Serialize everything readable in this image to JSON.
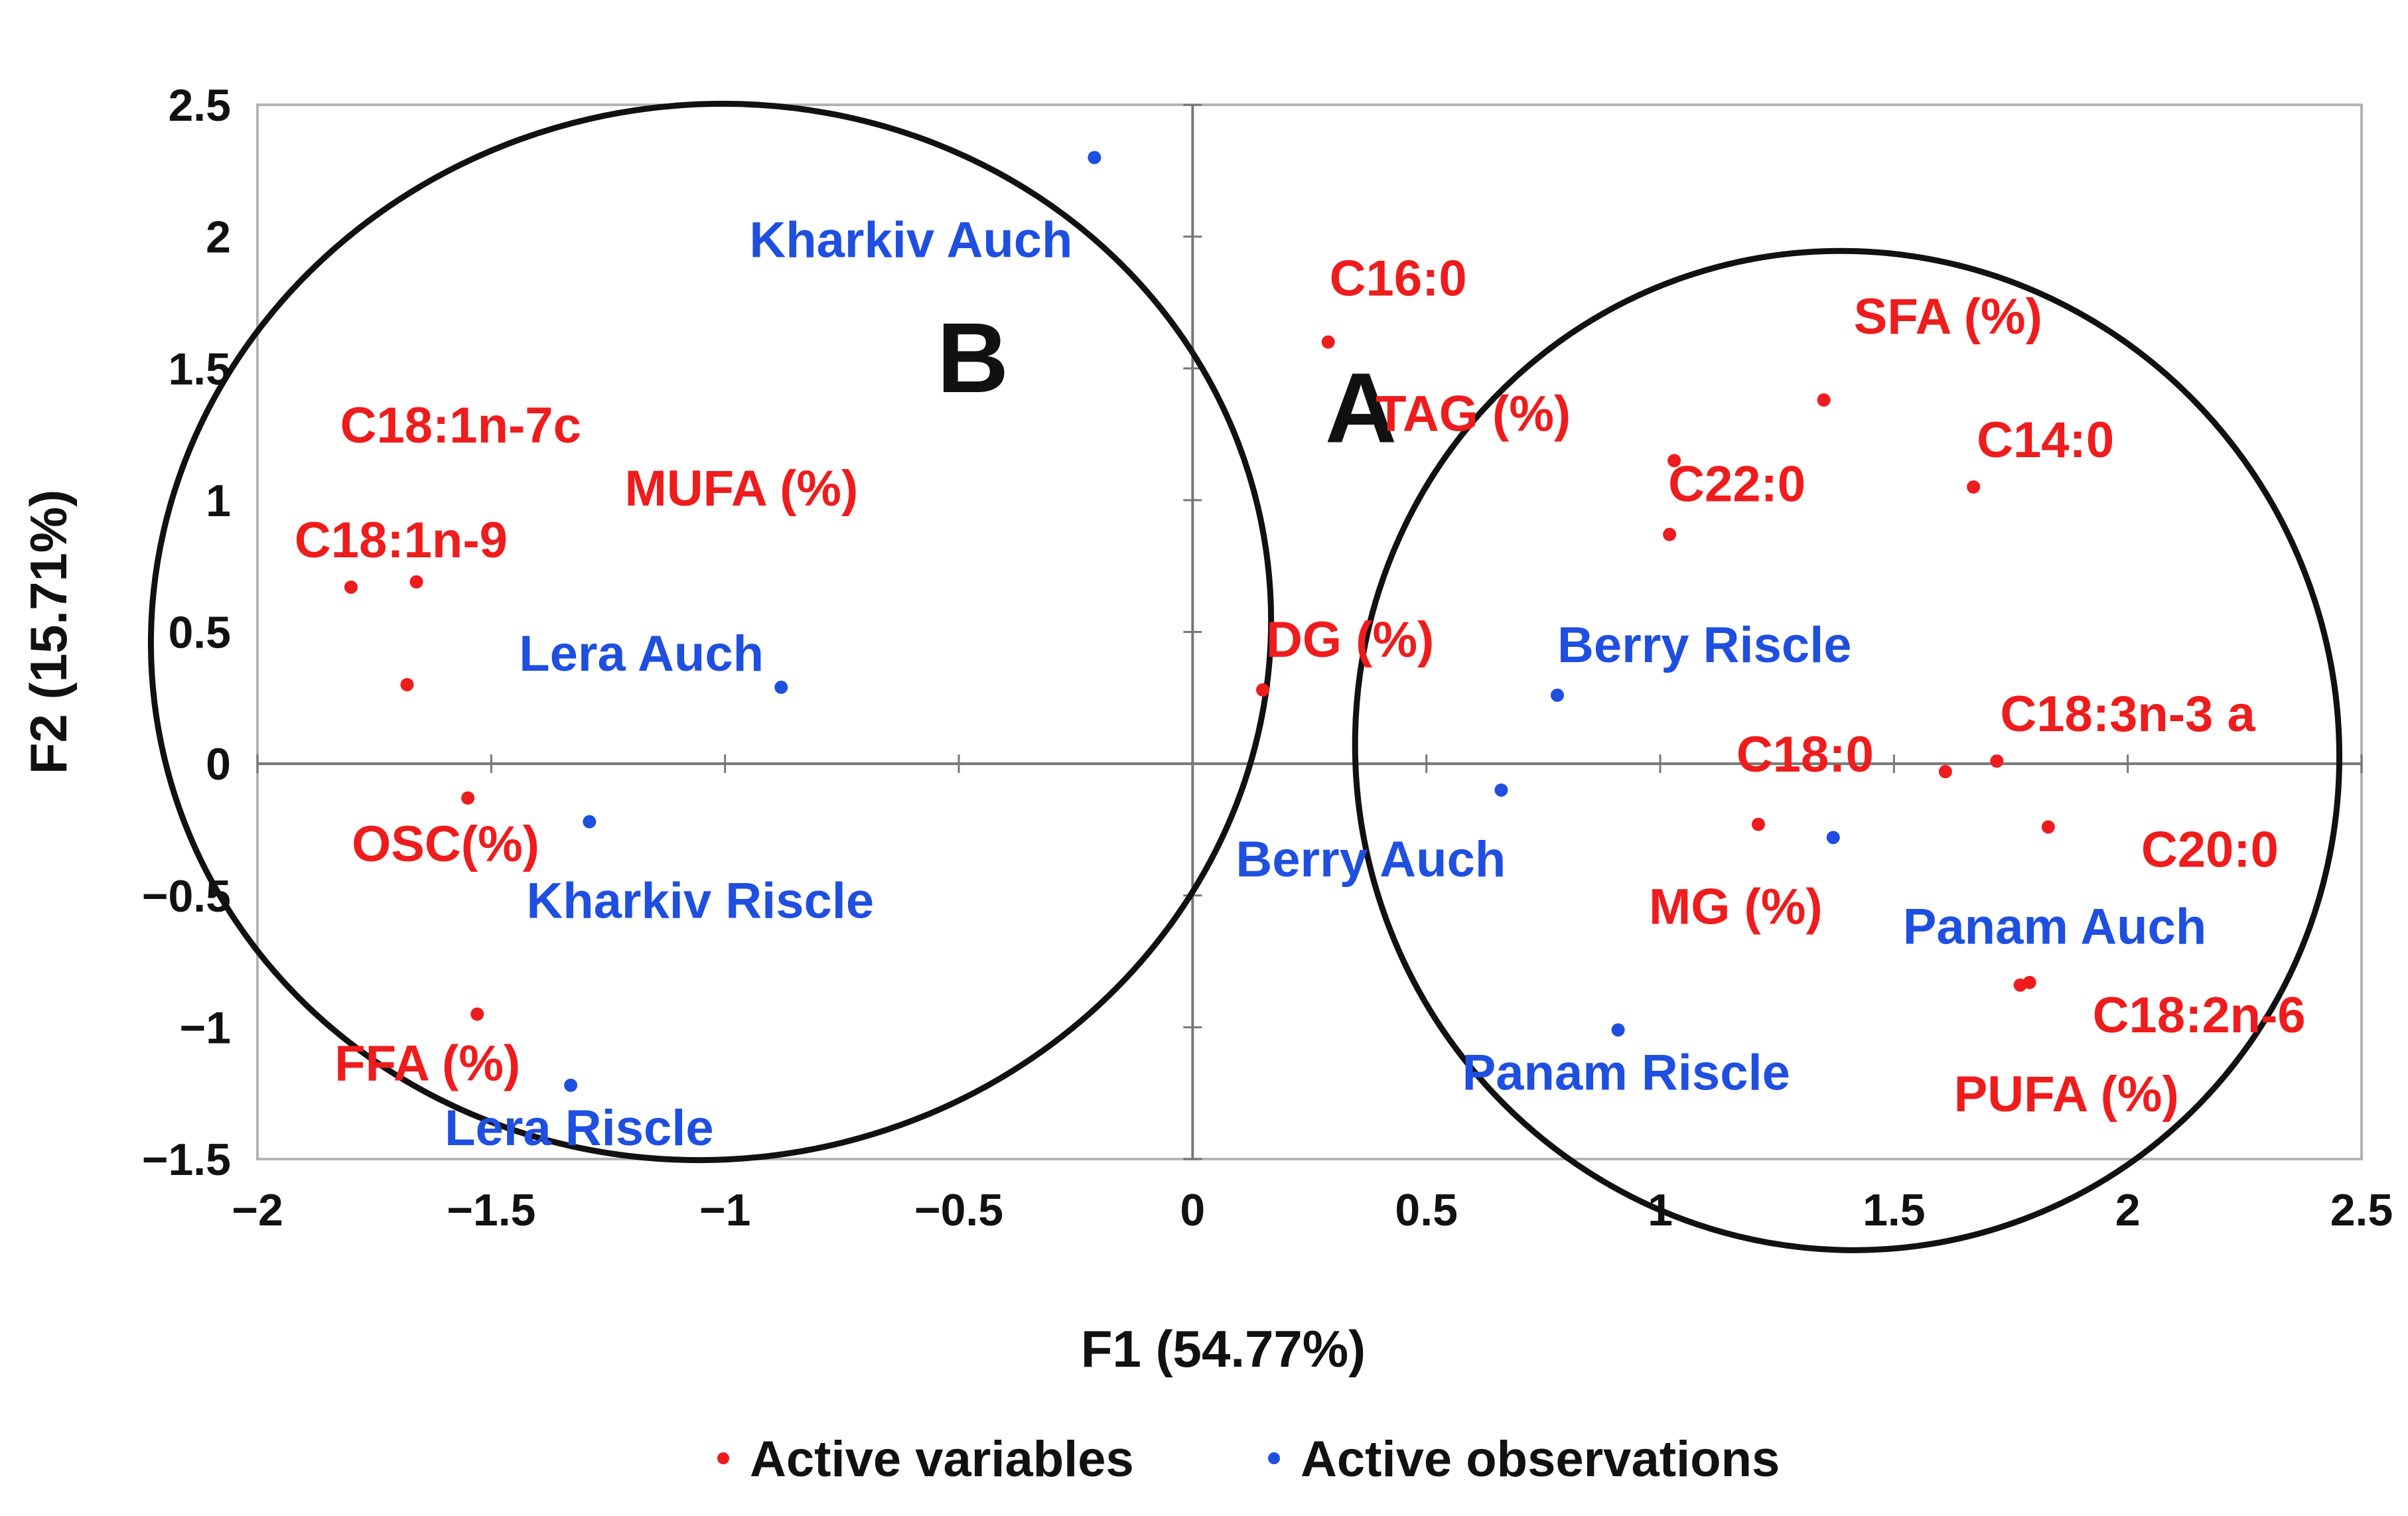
{
  "chart_data": {
    "type": "scatter",
    "title": "",
    "xlabel": "F1 (54.77%)",
    "ylabel": "F2 (15.71%)",
    "xlim": [
      -2,
      2.5
    ],
    "ylim": [
      -1.5,
      2.5
    ],
    "xticks": [
      -2,
      -1.5,
      -1,
      -0.5,
      0,
      0.5,
      1,
      1.5,
      2,
      2.5
    ],
    "yticks": [
      -1.5,
      -1,
      -0.5,
      0,
      0.5,
      1,
      1.5,
      2,
      2.5
    ],
    "xtick_labels": [
      "−2",
      "−1.5",
      "−1",
      "−0.5",
      "0",
      "0.5",
      "1",
      "1.5",
      "2",
      "2.5"
    ],
    "ytick_labels": [
      "−1.5",
      "−1",
      "−0.5",
      "0",
      "0.5",
      "1",
      "1.5",
      "2",
      "2.5"
    ],
    "legend": {
      "position": "bottom",
      "entries": [
        {
          "name": "Active variables",
          "color": "#ee1c1c"
        },
        {
          "name": "Active observations",
          "color": "#1f4fe0"
        }
      ]
    },
    "groups": [
      {
        "label": "A",
        "center": [
          1.4,
          0.05
        ],
        "radius": [
          1.05,
          1.9
        ],
        "rotation_deg": -20
      },
      {
        "label": "B",
        "center": [
          -1.03,
          0.5
        ],
        "radius": [
          1.2,
          2.0
        ],
        "rotation_deg": -10
      }
    ],
    "series": [
      {
        "name": "Active variables",
        "color": "#ee1c1c",
        "points": [
          {
            "label": "C16:0",
            "x": 0.29,
            "y": 1.6
          },
          {
            "label": "SFA (%)",
            "x": 1.35,
            "y": 1.38
          },
          {
            "label": "TAG (%)",
            "x": 1.03,
            "y": 1.15
          },
          {
            "label": "C14:0",
            "x": 1.67,
            "y": 1.05
          },
          {
            "label": "C22:0",
            "x": 1.02,
            "y": 0.87
          },
          {
            "label": "C18:1n-7c",
            "x": -1.66,
            "y": 0.69
          },
          {
            "label": "C18:1n-9",
            "x": -1.8,
            "y": 0.67
          },
          {
            "label": "MUFA (%)",
            "x": -1.68,
            "y": 0.3
          },
          {
            "label": "OSC(%)",
            "x": -1.55,
            "y": -0.13
          },
          {
            "label": "DG (%)",
            "x": 0.15,
            "y": 0.28
          },
          {
            "label": "C18:3n-3 a",
            "x": 1.72,
            "y": 0.01
          },
          {
            "label": "C18:0",
            "x": 1.61,
            "y": -0.03
          },
          {
            "label": "C20:0",
            "x": 1.83,
            "y": -0.24
          },
          {
            "label": "MG (%)",
            "x": 1.21,
            "y": -0.23
          },
          {
            "label": "C18:2n-6",
            "x": 1.79,
            "y": -0.83
          },
          {
            "label": "PUFA (%)",
            "x": 1.77,
            "y": -0.84
          },
          {
            "label": "FFA (%)",
            "x": -1.53,
            "y": -0.95
          }
        ]
      },
      {
        "name": "Active observations",
        "color": "#1f4fe0",
        "points": [
          {
            "label": "Kharkiv Auch",
            "x": -0.21,
            "y": 2.3
          },
          {
            "label": "Lera Auch",
            "x": -0.88,
            "y": 0.29
          },
          {
            "label": "Berry Riscle",
            "x": 0.78,
            "y": 0.26
          },
          {
            "label": "Berry Auch",
            "x": 0.66,
            "y": -0.1
          },
          {
            "label": "Kharkiv Riscle",
            "x": -1.29,
            "y": -0.22
          },
          {
            "label": "Panam Auch",
            "x": 1.37,
            "y": -0.28
          },
          {
            "label": "Panam Riscle",
            "x": 0.91,
            "y": -1.01
          },
          {
            "label": "Lera Riscle",
            "x": -1.33,
            "y": -1.22
          }
        ]
      }
    ]
  }
}
